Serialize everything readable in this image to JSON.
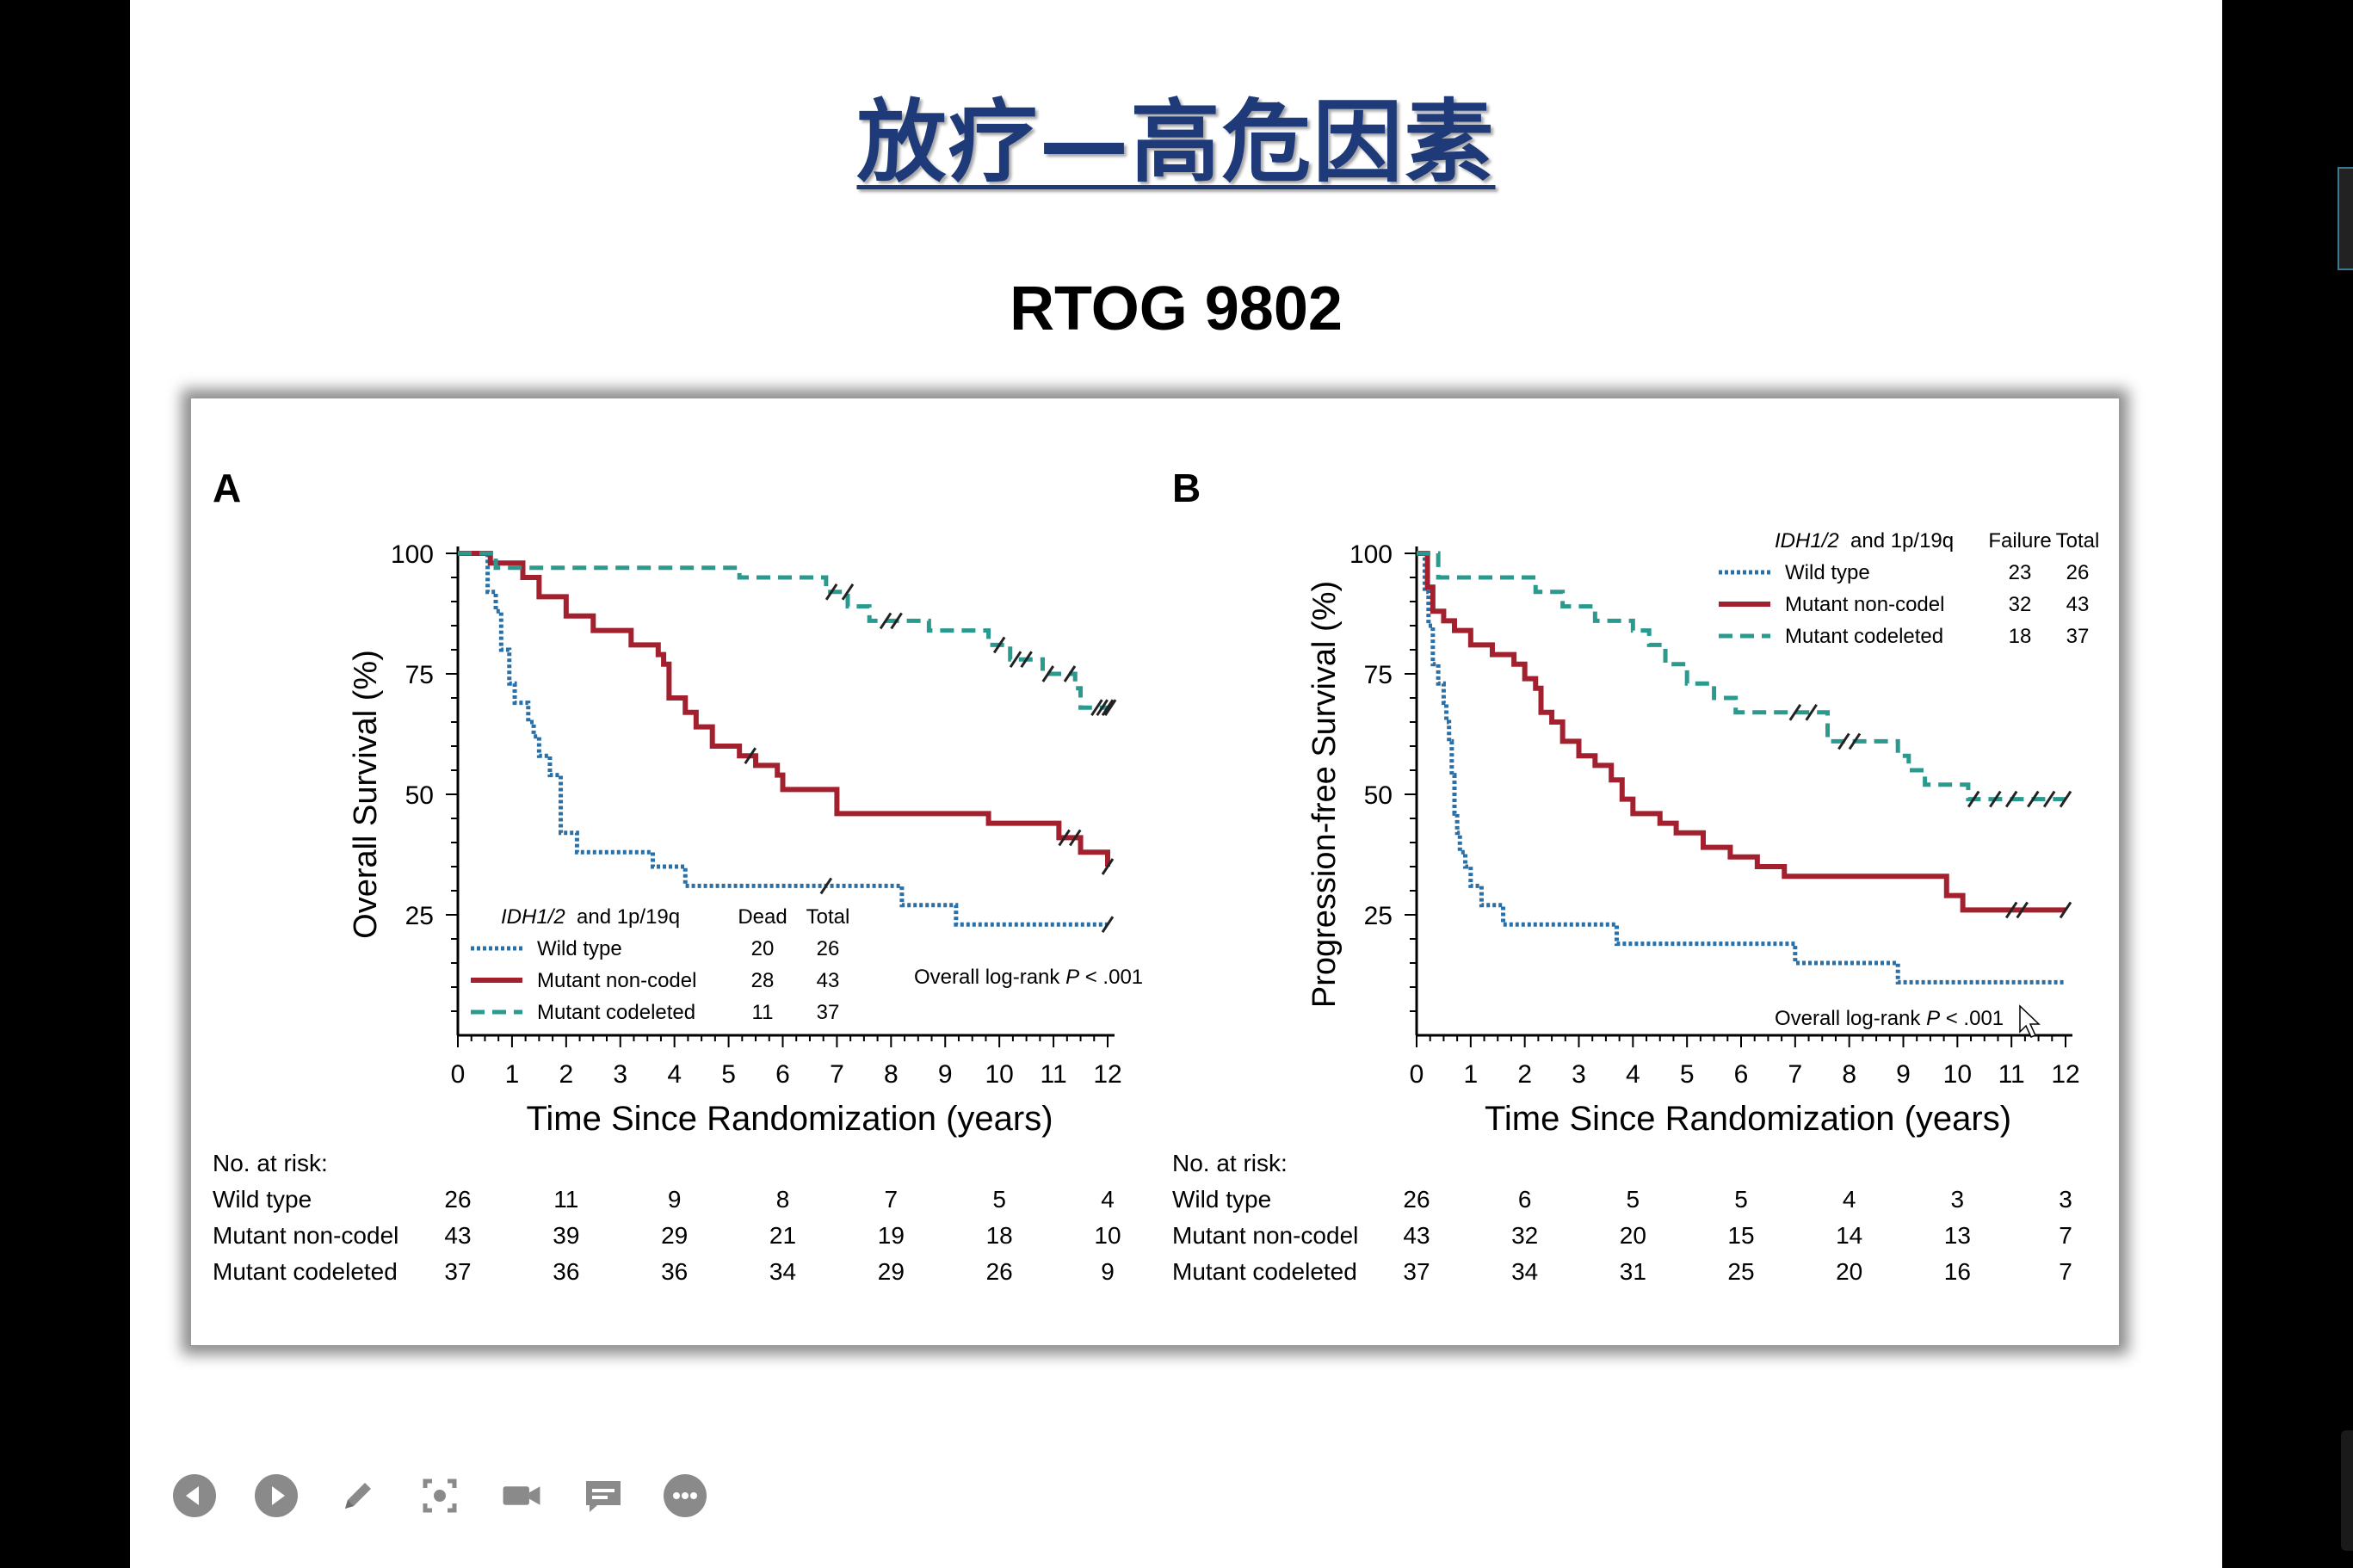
{
  "slide": {
    "title": "放疗—高危因素",
    "subtitle": "RTOG 9802",
    "title_color": "#1f3a78"
  },
  "series_colors": {
    "wild_type": "#2a6fa5",
    "mutant_noncodel": "#a3202f",
    "mutant_codeleted": "#2a9a8f"
  },
  "chart_data": [
    {
      "panel": "A",
      "type": "line",
      "subtype": "kaplan-meier",
      "ylabel": "Overall Survival (%)",
      "xlabel": "Time Since Randomization (years)",
      "xlim": [
        0,
        12
      ],
      "ylim": [
        0,
        100
      ],
      "xticks": [
        0,
        1,
        2,
        3,
        4,
        5,
        6,
        7,
        8,
        9,
        10,
        11,
        12
      ],
      "yticks": [
        25,
        50,
        75,
        100
      ],
      "legend": {
        "position": "bottom-left",
        "header": [
          "IDH1/2",
          "and 1p/19q",
          "Dead",
          "Total"
        ],
        "rows": [
          {
            "name": "Wild type",
            "col1": "20",
            "col2": "26"
          },
          {
            "name": "Mutant non-codel",
            "col1": "28",
            "col2": "43"
          },
          {
            "name": "Mutant codeleted",
            "col1": "11",
            "col2": "37"
          }
        ]
      },
      "annotation": {
        "prefix": "Overall log-rank ",
        "italic": "P",
        "suffix": " < .001"
      },
      "series": [
        {
          "name": "Wild type",
          "style": "dotted",
          "x": [
            0,
            0.5,
            0.55,
            0.7,
            0.8,
            0.95,
            1.05,
            1.3,
            1.4,
            1.5,
            1.7,
            1.9,
            2.0,
            2.2,
            2.4,
            2.5,
            3.6,
            3.75,
            4.2,
            4.3,
            8.0,
            8.2,
            9.0,
            9.2,
            12
          ],
          "y": [
            100,
            100,
            92,
            88,
            80,
            73,
            69,
            65,
            62,
            58,
            54,
            42,
            42,
            38,
            38,
            38,
            35,
            35,
            31,
            31,
            31,
            27,
            27,
            23,
            23
          ],
          "censor": [
            [
              6.8,
              31
            ],
            [
              12,
              23
            ]
          ]
        },
        {
          "name": "Mutant non-codel",
          "style": "solid",
          "x": [
            0,
            0.6,
            1.2,
            1.5,
            2.0,
            2.5,
            3.2,
            3.7,
            3.8,
            3.9,
            4.2,
            4.4,
            4.7,
            5.2,
            5.5,
            5.9,
            6.0,
            7.0,
            9.8,
            11.1,
            11.5,
            12
          ],
          "y": [
            100,
            98,
            95,
            91,
            87,
            84,
            81,
            79,
            77,
            70,
            67,
            64,
            60,
            58,
            56,
            54,
            51,
            46,
            44,
            41,
            38,
            35
          ],
          "censor": [
            [
              5.4,
              58
            ],
            [
              11.2,
              41
            ],
            [
              11.4,
              41
            ],
            [
              12,
              35
            ]
          ]
        },
        {
          "name": "Mutant codeleted",
          "style": "dashed",
          "x": [
            0,
            0.7,
            4.5,
            5.2,
            6.8,
            7.2,
            7.6,
            8.7,
            9.8,
            10.2,
            10.8,
            11.4,
            11.5,
            12
          ],
          "y": [
            100,
            97,
            97,
            95,
            92,
            89,
            86,
            84,
            81,
            78,
            75,
            72,
            68,
            68
          ],
          "censor": [
            [
              6.9,
              92
            ],
            [
              7.2,
              92
            ],
            [
              7.9,
              86
            ],
            [
              8.1,
              86
            ],
            [
              10.0,
              81
            ],
            [
              10.3,
              78
            ],
            [
              10.5,
              78
            ],
            [
              10.9,
              75
            ],
            [
              11.3,
              75
            ],
            [
              11.8,
              68
            ],
            [
              11.9,
              68
            ],
            [
              12,
              68
            ],
            [
              12.05,
              68
            ]
          ]
        }
      ],
      "at_risk": {
        "title": "No. at risk:",
        "x": [
          0,
          2,
          4,
          6,
          8,
          10,
          12
        ],
        "rows": [
          {
            "name": "Wild type",
            "values": [
              "26",
              "11",
              "9",
              "8",
              "7",
              "5",
              "4"
            ]
          },
          {
            "name": "Mutant non-codel",
            "values": [
              "43",
              "39",
              "29",
              "21",
              "19",
              "18",
              "10"
            ]
          },
          {
            "name": "Mutant codeleted",
            "values": [
              "37",
              "36",
              "36",
              "34",
              "29",
              "26",
              "9"
            ]
          }
        ]
      }
    },
    {
      "panel": "B",
      "type": "line",
      "subtype": "kaplan-meier",
      "ylabel": "Progression-free Survival (%)",
      "xlabel": "Time Since Randomization (years)",
      "xlim": [
        0,
        12
      ],
      "ylim": [
        0,
        100
      ],
      "xticks": [
        0,
        1,
        2,
        3,
        4,
        5,
        6,
        7,
        8,
        9,
        10,
        11,
        12
      ],
      "yticks": [
        25,
        50,
        75,
        100
      ],
      "legend": {
        "position": "top-right",
        "header": [
          "IDH1/2",
          "and 1p/19q",
          "Failure",
          "Total"
        ],
        "rows": [
          {
            "name": "Wild type",
            "col1": "23",
            "col2": "26"
          },
          {
            "name": "Mutant non-codel",
            "col1": "32",
            "col2": "43"
          },
          {
            "name": "Mutant codeleted",
            "col1": "18",
            "col2": "37"
          }
        ]
      },
      "annotation": {
        "prefix": "Overall log-rank ",
        "italic": "P",
        "suffix": " < .001"
      },
      "series": [
        {
          "name": "Wild type",
          "style": "dotted",
          "x": [
            0,
            0.15,
            0.22,
            0.3,
            0.4,
            0.5,
            0.55,
            0.6,
            0.65,
            0.7,
            0.75,
            0.8,
            0.9,
            1.0,
            1.2,
            1.6,
            3.7,
            7.0,
            8.9,
            12
          ],
          "y": [
            100,
            92,
            85,
            77,
            73,
            69,
            65,
            61,
            54,
            46,
            42,
            38,
            35,
            31,
            27,
            23,
            19,
            15,
            11,
            11
          ],
          "censor": []
        },
        {
          "name": "Mutant non-codel",
          "style": "solid",
          "x": [
            0,
            0.2,
            0.3,
            0.5,
            0.7,
            1.0,
            1.4,
            1.8,
            2.0,
            2.2,
            2.3,
            2.5,
            2.7,
            3.0,
            3.3,
            3.6,
            3.8,
            4.0,
            4.5,
            4.8,
            5.3,
            5.8,
            6.3,
            6.8,
            9.6,
            9.8,
            10.1,
            12
          ],
          "y": [
            100,
            93,
            88,
            86,
            84,
            81,
            79,
            77,
            74,
            72,
            67,
            65,
            61,
            58,
            56,
            53,
            49,
            46,
            44,
            42,
            39,
            37,
            35,
            33,
            33,
            29,
            26,
            26
          ],
          "censor": [
            [
              11.0,
              26
            ],
            [
              11.2,
              26
            ],
            [
              12,
              26
            ]
          ]
        },
        {
          "name": "Mutant codeleted",
          "style": "dashed",
          "x": [
            0,
            0.4,
            1.8,
            2.2,
            2.7,
            3.3,
            4.0,
            4.3,
            4.6,
            5.0,
            5.5,
            5.9,
            6.2,
            7.6,
            8.9,
            9.1,
            9.4,
            10.2,
            12
          ],
          "y": [
            100,
            95,
            95,
            92,
            89,
            86,
            84,
            81,
            77,
            73,
            70,
            67,
            67,
            61,
            58,
            55,
            52,
            49,
            49
          ],
          "censor": [
            [
              7.0,
              67
            ],
            [
              7.3,
              67
            ],
            [
              7.9,
              61
            ],
            [
              8.1,
              61
            ],
            [
              10.3,
              49
            ],
            [
              10.7,
              49
            ],
            [
              11.0,
              49
            ],
            [
              11.4,
              49
            ],
            [
              11.7,
              49
            ],
            [
              12,
              49
            ]
          ]
        }
      ],
      "at_risk": {
        "title": "No. at risk:",
        "x": [
          0,
          2,
          4,
          6,
          8,
          10,
          12
        ],
        "rows": [
          {
            "name": "Wild type",
            "values": [
              "26",
              "6",
              "5",
              "5",
              "4",
              "3",
              "3"
            ]
          },
          {
            "name": "Mutant non-codel",
            "values": [
              "43",
              "32",
              "20",
              "15",
              "14",
              "13",
              "7"
            ]
          },
          {
            "name": "Mutant codeleted",
            "values": [
              "37",
              "34",
              "31",
              "25",
              "20",
              "16",
              "7"
            ]
          }
        ]
      }
    }
  ],
  "toolbar": {
    "buttons": [
      {
        "icon": "previous-icon"
      },
      {
        "icon": "next-icon"
      },
      {
        "icon": "pen-icon"
      },
      {
        "icon": "zoom-icon"
      },
      {
        "icon": "camera-icon"
      },
      {
        "icon": "subtitle-icon"
      },
      {
        "icon": "more-icon"
      }
    ],
    "color": "#8a8a8a"
  }
}
